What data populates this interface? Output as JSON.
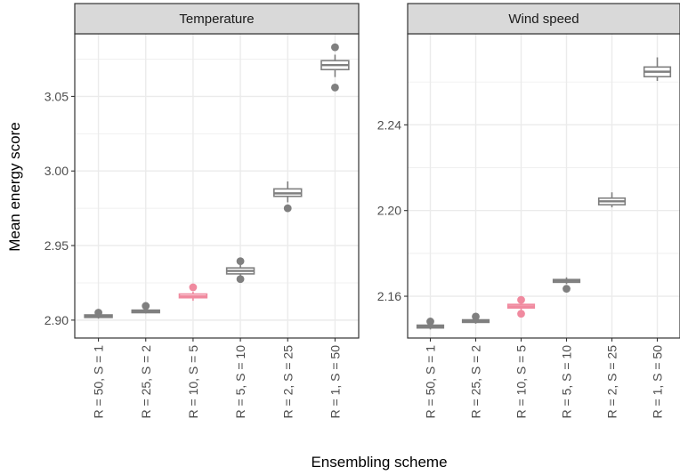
{
  "chart_data": {
    "type": "box",
    "xlabel": "Ensembling scheme",
    "ylabel": "Mean energy score",
    "categories": [
      "R = 50, S = 1",
      "R = 25, S = 2",
      "R = 10, S = 5",
      "R = 5, S = 10",
      "R = 2, S = 25",
      "R = 1, S = 50"
    ],
    "highlight_category": "R = 10, S = 5",
    "colors": {
      "default": "#7f7f7f",
      "highlight": "#f08a9f",
      "panel_border": "#333333",
      "strip_bg": "#d9d9d9",
      "grid": "#ebebeb"
    },
    "grid": true,
    "panels": [
      {
        "strip": "Temperature",
        "ylim": [
          2.888,
          3.092
        ],
        "yticks": [
          2.9,
          2.95,
          3.0,
          3.05
        ],
        "ytick_labels": [
          "2.90",
          "2.95",
          "3.00",
          "3.05"
        ],
        "boxes": [
          {
            "category": "R = 50, S = 1",
            "whisker_low": 2.901,
            "q1": 2.9018,
            "median": 2.9025,
            "q3": 2.9035,
            "whisker_high": 2.904,
            "outliers": [
              2.905
            ]
          },
          {
            "category": "R = 25, S = 2",
            "whisker_low": 2.9045,
            "q1": 2.905,
            "median": 2.906,
            "q3": 2.9067,
            "whisker_high": 2.9075,
            "outliers": [
              2.9095
            ]
          },
          {
            "category": "R = 10, S = 5",
            "whisker_low": 2.913,
            "q1": 2.915,
            "median": 2.916,
            "q3": 2.9175,
            "whisker_high": 2.919,
            "outliers": [
              2.922
            ]
          },
          {
            "category": "R = 5, S = 10",
            "whisker_low": 2.929,
            "q1": 2.931,
            "median": 2.933,
            "q3": 2.935,
            "whisker_high": 2.937,
            "outliers": [
              2.9395,
              2.9275
            ]
          },
          {
            "category": "R = 2, S = 25",
            "whisker_low": 2.979,
            "q1": 2.983,
            "median": 2.985,
            "q3": 2.988,
            "whisker_high": 2.993,
            "outliers": [
              2.975
            ]
          },
          {
            "category": "R = 1, S = 50",
            "whisker_low": 3.063,
            "q1": 3.068,
            "median": 3.071,
            "q3": 3.074,
            "whisker_high": 3.078,
            "outliers": [
              3.083,
              3.056
            ]
          }
        ]
      },
      {
        "strip": "Wind speed",
        "ylim": [
          2.1405,
          2.2825
        ],
        "yticks": [
          2.16,
          2.2,
          2.24
        ],
        "ytick_labels": [
          "2.16",
          "2.20",
          "2.24"
        ],
        "boxes": [
          {
            "category": "R = 50, S = 1",
            "whisker_low": 2.1445,
            "q1": 2.1452,
            "median": 2.1458,
            "q3": 2.1465,
            "whisker_high": 2.1472,
            "outliers": [
              2.1482
            ]
          },
          {
            "category": "R = 25, S = 2",
            "whisker_low": 2.1472,
            "q1": 2.1478,
            "median": 2.1483,
            "q3": 2.149,
            "whisker_high": 2.1495,
            "outliers": [
              2.1505
            ]
          },
          {
            "category": "R = 10, S = 5",
            "whisker_low": 2.1532,
            "q1": 2.1545,
            "median": 2.1553,
            "q3": 2.1562,
            "whisker_high": 2.157,
            "outliers": [
              2.1583,
              2.1518
            ]
          },
          {
            "category": "R = 5, S = 10",
            "whisker_low": 2.1657,
            "q1": 2.1665,
            "median": 2.1672,
            "q3": 2.1678,
            "whisker_high": 2.1688,
            "outliers": [
              2.1635
            ]
          },
          {
            "category": "R = 2, S = 25",
            "whisker_low": 2.2015,
            "q1": 2.2027,
            "median": 2.2043,
            "q3": 2.2058,
            "whisker_high": 2.2085,
            "outliers": []
          },
          {
            "category": "R = 1, S = 50",
            "whisker_low": 2.2605,
            "q1": 2.2625,
            "median": 2.2648,
            "q3": 2.267,
            "whisker_high": 2.2715,
            "outliers": []
          }
        ]
      }
    ]
  }
}
